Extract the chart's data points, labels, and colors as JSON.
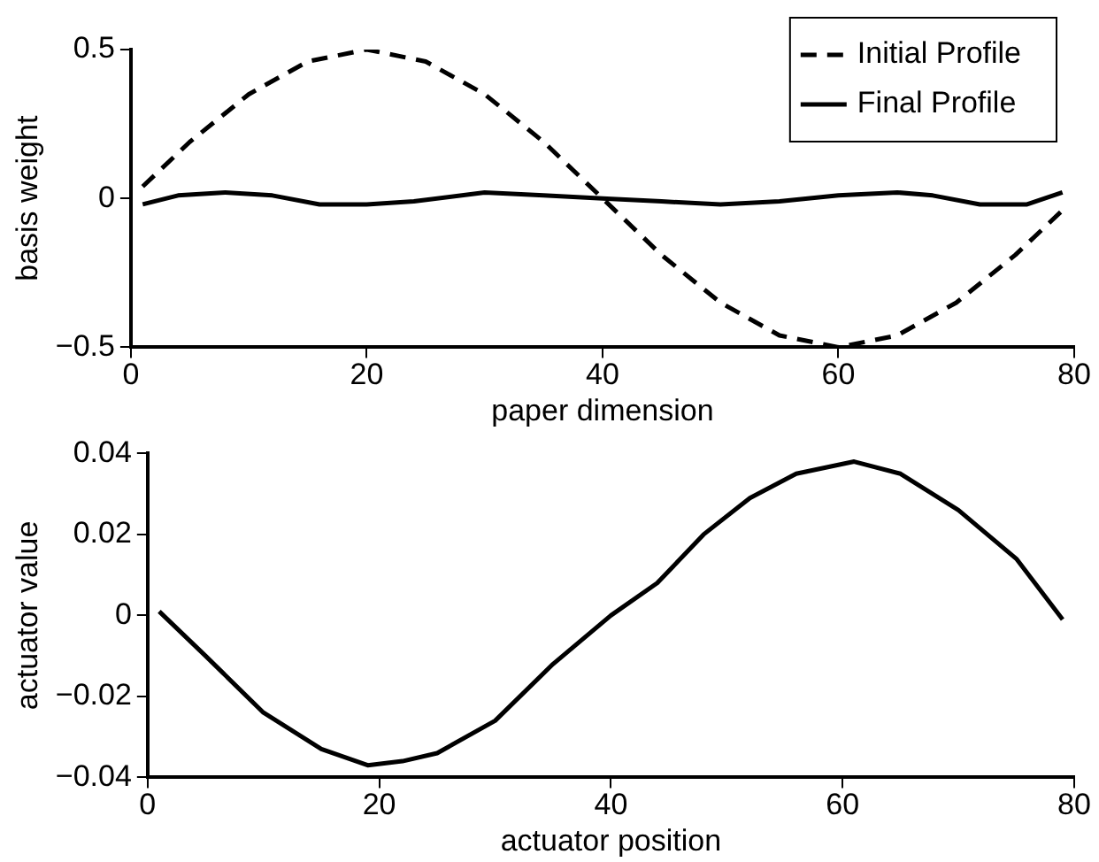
{
  "chart_data": [
    {
      "type": "line",
      "xlabel": "paper dimension",
      "ylabel": "basis weight",
      "xlim": [
        0,
        80
      ],
      "ylim": [
        -0.5,
        0.5
      ],
      "xticks": [
        0,
        20,
        40,
        60,
        80
      ],
      "yticks": [
        -0.5,
        0,
        0.5
      ],
      "grid": false,
      "legend": "top right",
      "marker": "none",
      "series": [
        {
          "name": "Initial Profile",
          "color": "#000000",
          "line_style": "dashed",
          "x": [
            1,
            5,
            10,
            15,
            20,
            25,
            30,
            35,
            40,
            45,
            50,
            55,
            60,
            65,
            70,
            75,
            79
          ],
          "values": [
            0.04,
            0.19,
            0.35,
            0.46,
            0.5,
            0.46,
            0.35,
            0.19,
            0,
            -0.19,
            -0.35,
            -0.46,
            -0.5,
            -0.46,
            -0.35,
            -0.19,
            -0.04
          ]
        },
        {
          "name": "Final Profile",
          "color": "#000000",
          "line_style": "solid",
          "x": [
            1,
            4,
            8,
            12,
            16,
            20,
            24,
            30,
            35,
            40,
            45,
            50,
            55,
            60,
            65,
            68,
            72,
            76,
            79
          ],
          "values": [
            -0.02,
            0.01,
            0.02,
            0.01,
            -0.02,
            -0.02,
            -0.01,
            0.02,
            0.01,
            0,
            -0.01,
            -0.02,
            -0.01,
            0.01,
            0.02,
            0.01,
            -0.02,
            -0.02,
            0.02
          ]
        }
      ]
    },
    {
      "type": "line",
      "xlabel": "actuator position",
      "ylabel": "actuator value",
      "xlim": [
        0,
        80
      ],
      "ylim": [
        -0.04,
        0.04
      ],
      "xticks": [
        0,
        20,
        40,
        60,
        80
      ],
      "yticks": [
        -0.04,
        -0.02,
        0,
        0.02,
        0.04
      ],
      "grid": false,
      "legend": false,
      "marker": "none",
      "series": [
        {
          "color": "#000000",
          "line_style": "solid",
          "x": [
            1,
            5,
            10,
            15,
            19,
            22,
            25,
            30,
            35,
            40,
            44,
            48,
            52,
            56,
            61,
            65,
            70,
            75,
            79
          ],
          "values": [
            0.001,
            -0.01,
            -0.024,
            -0.033,
            -0.037,
            -0.036,
            -0.034,
            -0.026,
            -0.012,
            0,
            0.008,
            0.02,
            0.029,
            0.035,
            0.038,
            0.035,
            0.026,
            0.014,
            -0.001
          ]
        }
      ]
    }
  ]
}
